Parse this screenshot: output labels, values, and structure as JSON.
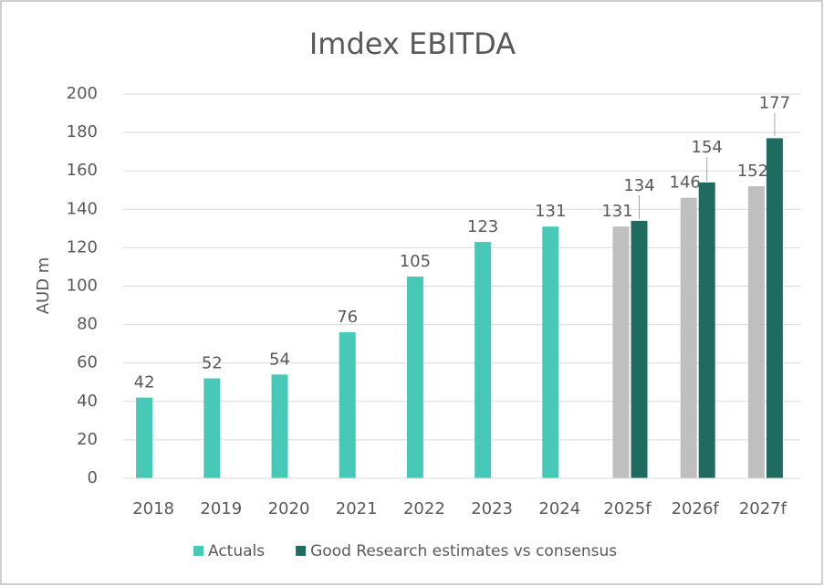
{
  "chart_data": {
    "type": "bar",
    "title": "Imdex EBITDA",
    "y_label": "AUD m",
    "categories": [
      "2018",
      "2019",
      "2020",
      "2021",
      "2022",
      "2023",
      "2024",
      "2025f",
      "2026f",
      "2027f"
    ],
    "series": [
      {
        "name": "Actuals",
        "color": "#48c9b8",
        "values": [
          42,
          52,
          54,
          76,
          105,
          123,
          131,
          null,
          null,
          null
        ]
      },
      {
        "color": "#bfbfbf",
        "values": [
          null,
          null,
          null,
          null,
          null,
          null,
          null,
          131,
          146,
          152
        ]
      },
      {
        "name": "Good Research estimates vs consensus",
        "color": "#1f6b60",
        "values": [
          null,
          null,
          null,
          null,
          null,
          null,
          null,
          134,
          154,
          177
        ]
      }
    ],
    "ylim": [
      0,
      200
    ],
    "yticks": [
      0,
      20,
      40,
      60,
      80,
      100,
      120,
      140,
      160,
      180,
      200
    ],
    "grid": true,
    "legend": "bottom"
  }
}
